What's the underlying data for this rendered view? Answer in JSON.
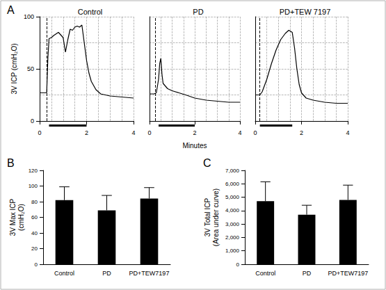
{
  "chart_data": [
    {
      "type": "line",
      "panel": "A",
      "y_label": "3V ICP (cmH₂O)",
      "x_label": "Minutes",
      "ylim": [
        0,
        100
      ],
      "yticks": [
        0,
        50,
        100
      ],
      "grid": true,
      "color": "#000000",
      "panels": [
        {
          "title": "Control",
          "xlim": [
            0,
            4
          ],
          "xticks": [
            0,
            2,
            4
          ],
          "stimulus_start": 0.3,
          "application": [
            0.4,
            2.0
          ],
          "x": [
            0,
            0.2,
            0.3,
            0.35,
            0.4,
            0.5,
            0.6,
            0.8,
            1.0,
            1.1,
            1.2,
            1.3,
            1.4,
            1.5,
            1.6,
            1.7,
            1.8,
            1.9,
            2.0,
            2.1,
            2.2,
            2.4,
            2.6,
            3.0,
            3.5,
            4.0
          ],
          "values": [
            27,
            27,
            27,
            60,
            79,
            80,
            82,
            85,
            80,
            66,
            78,
            88,
            87,
            90,
            91,
            90,
            92,
            75,
            58,
            46,
            38,
            30,
            26,
            24,
            23,
            22
          ]
        },
        {
          "title": "PD",
          "xlim": [
            0,
            4
          ],
          "xticks": [
            0,
            2,
            4
          ],
          "stimulus_start": 0.25,
          "application": [
            0.4,
            2.0
          ],
          "x": [
            0,
            0.2,
            0.3,
            0.4,
            0.45,
            0.5,
            0.55,
            0.6,
            0.8,
            1.0,
            1.3,
            1.6,
            2.0,
            2.5,
            3.0,
            3.5,
            4.0
          ],
          "values": [
            26,
            26,
            27,
            40,
            55,
            60,
            45,
            36,
            31,
            29,
            27,
            25,
            22,
            20,
            19,
            18,
            18
          ]
        },
        {
          "title": "PD+TEW 7197",
          "xlim": [
            0,
            4
          ],
          "xticks": [
            0,
            2,
            4
          ],
          "stimulus_start": 0.2,
          "application": [
            0.2,
            1.6
          ],
          "x": [
            0,
            0.2,
            0.3,
            0.5,
            0.7,
            0.9,
            1.1,
            1.3,
            1.45,
            1.6,
            1.7,
            1.8,
            1.9,
            2.0,
            2.2,
            2.5,
            3.0,
            3.5,
            4.0
          ],
          "values": [
            25,
            25,
            28,
            40,
            55,
            68,
            78,
            84,
            87,
            85,
            70,
            50,
            35,
            27,
            22,
            20,
            18,
            17,
            17
          ]
        }
      ]
    },
    {
      "type": "bar",
      "panel": "B",
      "y_label": "3V Max ICP",
      "y_unit": "(cmH₂O)",
      "categories": [
        "Control",
        "PD",
        "PD+TEW7197"
      ],
      "values": [
        82,
        69,
        84
      ],
      "errors": [
        17,
        19,
        14
      ],
      "color": "#000000",
      "ylim": [
        0,
        120
      ],
      "yticks": [
        0,
        20,
        40,
        60,
        80,
        100,
        120
      ],
      "grid": false
    },
    {
      "type": "bar",
      "panel": "C",
      "y_label": "3V Total ICP",
      "y_unit": "(Area under curve)",
      "categories": [
        "Control",
        "PD",
        "PD+TEW7197"
      ],
      "values": [
        4700,
        3700,
        4800
      ],
      "errors": [
        1450,
        700,
        1100
      ],
      "color": "#000000",
      "ylim": [
        0,
        7000
      ],
      "yticks": [
        0,
        1000,
        2000,
        3000,
        4000,
        5000,
        6000,
        7000
      ],
      "grid": false
    }
  ]
}
